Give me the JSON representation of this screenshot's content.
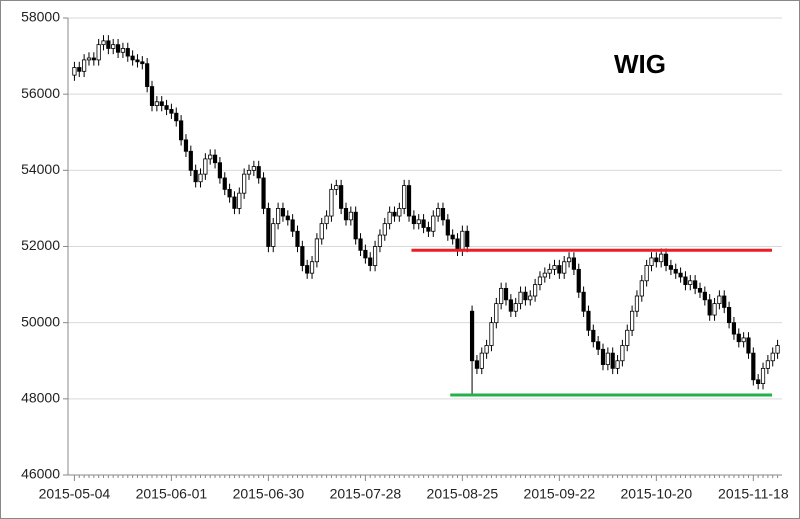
{
  "chart_data": {
    "type": "candlestick",
    "title": "WIG",
    "categories": [
      "2015-05-04",
      null,
      null,
      null,
      null,
      null,
      null,
      null,
      null,
      null,
      null,
      null,
      null,
      null,
      null,
      null,
      null,
      null,
      null,
      null,
      "2015-06-01",
      null,
      null,
      null,
      null,
      null,
      null,
      null,
      null,
      null,
      null,
      null,
      null,
      null,
      null,
      null,
      null,
      null,
      null,
      null,
      "2015-06-30",
      null,
      null,
      null,
      null,
      null,
      null,
      null,
      null,
      null,
      null,
      null,
      null,
      null,
      null,
      null,
      null,
      null,
      null,
      null,
      "2015-07-28",
      null,
      null,
      null,
      null,
      null,
      null,
      null,
      null,
      null,
      null,
      null,
      null,
      null,
      null,
      null,
      null,
      null,
      null,
      null,
      "2015-08-25",
      null,
      null,
      null,
      null,
      null,
      null,
      null,
      null,
      null,
      null,
      null,
      null,
      null,
      null,
      null,
      null,
      null,
      null,
      null,
      "2015-09-22",
      null,
      null,
      null,
      null,
      null,
      null,
      null,
      null,
      null,
      null,
      null,
      null,
      null,
      null,
      null,
      null,
      null,
      null,
      null,
      "2015-10-20",
      null,
      null,
      null,
      null,
      null,
      null,
      null,
      null,
      null,
      null,
      null,
      null,
      null,
      null,
      null,
      null,
      null,
      null,
      null,
      "2015-11-18",
      null,
      null,
      null,
      null,
      null
    ],
    "open": [
      56500,
      56700,
      56600,
      56900,
      56950,
      56900,
      57300,
      57400,
      57200,
      57300,
      57100,
      57200,
      57000,
      56900,
      56850,
      56800,
      56200,
      55700,
      55800,
      55700,
      55600,
      55500,
      55300,
      54800,
      54500,
      54000,
      53700,
      53900,
      54300,
      54400,
      54200,
      53800,
      53500,
      53300,
      53000,
      53400,
      53900,
      54000,
      54100,
      53800,
      53000,
      52000,
      52600,
      53000,
      52800,
      52700,
      52400,
      52000,
      51500,
      51300,
      51600,
      52200,
      52600,
      52800,
      53500,
      53600,
      53000,
      52700,
      52900,
      52200,
      51900,
      51700,
      51500,
      52000,
      52300,
      52600,
      52900,
      52800,
      53000,
      53600,
      52800,
      52600,
      52700,
      52500,
      52400,
      52800,
      53000,
      52700,
      52300,
      52200,
      51900,
      52400,
      50300,
      49000,
      48800,
      49200,
      49400,
      50000,
      50500,
      50900,
      50600,
      50300,
      50500,
      50800,
      50600,
      50700,
      51000,
      51200,
      51300,
      51400,
      51500,
      51300,
      51600,
      51700,
      51400,
      50800,
      50300,
      49800,
      49500,
      49300,
      48900,
      49200,
      48800,
      49000,
      49400,
      49800,
      50300,
      50700,
      51100,
      51500,
      51700,
      51600,
      51800,
      51500,
      51400,
      51300,
      51200,
      51000,
      51100,
      50900,
      50800,
      50600,
      50200,
      50500,
      50700,
      50400,
      50000,
      49700,
      49500,
      49600,
      49200,
      48500,
      48400,
      48800,
      49000,
      49200
    ],
    "high": [
      56850,
      56850,
      57050,
      57100,
      57100,
      57450,
      57550,
      57550,
      57450,
      57450,
      57350,
      57350,
      57150,
      57050,
      57000,
      56950,
      56350,
      55950,
      55950,
      55850,
      55750,
      55650,
      55450,
      54950,
      54650,
      54150,
      54050,
      54450,
      54550,
      54550,
      54350,
      53950,
      53650,
      53450,
      53550,
      54050,
      54150,
      54250,
      54250,
      53950,
      53150,
      52750,
      53150,
      53150,
      52950,
      52850,
      52550,
      52150,
      51650,
      51750,
      52350,
      52750,
      52950,
      53650,
      53750,
      53750,
      53150,
      53050,
      53050,
      52350,
      52050,
      51850,
      52150,
      52450,
      52750,
      53050,
      53050,
      53150,
      53750,
      53750,
      52950,
      52850,
      52850,
      52650,
      52950,
      53150,
      53150,
      52850,
      52450,
      52350,
      52550,
      52550,
      50450,
      49150,
      49350,
      49550,
      50150,
      50650,
      51050,
      51050,
      50750,
      50650,
      50950,
      50950,
      50850,
      51150,
      51350,
      51450,
      51550,
      51650,
      51650,
      51750,
      51850,
      51850,
      51550,
      50950,
      50450,
      49950,
      49650,
      49450,
      49350,
      49350,
      49150,
      49550,
      49950,
      50450,
      50850,
      51250,
      51650,
      51850,
      51850,
      51950,
      51950,
      51650,
      51550,
      51450,
      51350,
      51250,
      51250,
      51050,
      50950,
      50750,
      50650,
      50850,
      50850,
      50550,
      50150,
      49850,
      49750,
      49750,
      49350,
      48650,
      48950,
      49150,
      49350,
      49550
    ],
    "low": [
      56350,
      56450,
      56450,
      56750,
      56750,
      56750,
      57150,
      57050,
      57050,
      56950,
      56950,
      56850,
      56750,
      56700,
      56650,
      56050,
      55550,
      55550,
      55550,
      55450,
      55350,
      55150,
      54650,
      54350,
      53850,
      53550,
      53550,
      53750,
      54150,
      54050,
      53650,
      53350,
      53150,
      52850,
      52850,
      53250,
      53750,
      53850,
      53650,
      52850,
      51850,
      51850,
      52450,
      52650,
      52550,
      52250,
      51850,
      51350,
      51150,
      51150,
      51450,
      52050,
      52450,
      52650,
      53350,
      52850,
      52550,
      52550,
      52050,
      51750,
      51550,
      51350,
      51350,
      51850,
      52150,
      52450,
      52650,
      52650,
      52850,
      52650,
      52450,
      52450,
      52350,
      52250,
      52250,
      52650,
      52550,
      52150,
      52050,
      51750,
      51750,
      51850,
      48100,
      48650,
      48650,
      49050,
      49250,
      49850,
      50350,
      50450,
      50150,
      50150,
      50350,
      50450,
      50450,
      50550,
      50850,
      51050,
      51150,
      51250,
      51150,
      51150,
      51450,
      51250,
      50650,
      50150,
      49650,
      49350,
      49150,
      48750,
      48750,
      48650,
      48650,
      48850,
      49250,
      49650,
      50150,
      50550,
      50950,
      51350,
      51450,
      51450,
      51350,
      51250,
      51150,
      51050,
      50850,
      50850,
      50750,
      50650,
      50450,
      50050,
      50050,
      50350,
      50250,
      49850,
      49550,
      49350,
      49350,
      49050,
      48350,
      48250,
      48250,
      48650,
      48850,
      49050
    ],
    "close": [
      56700,
      56600,
      56900,
      56950,
      56900,
      57300,
      57400,
      57200,
      57300,
      57100,
      57200,
      57000,
      56900,
      56850,
      56800,
      56200,
      55700,
      55800,
      55700,
      55600,
      55500,
      55300,
      54800,
      54500,
      54000,
      53700,
      53900,
      54300,
      54400,
      54200,
      53800,
      53500,
      53300,
      53000,
      53400,
      53900,
      54000,
      54100,
      53800,
      53000,
      52000,
      52600,
      53000,
      52800,
      52700,
      52400,
      52000,
      51500,
      51300,
      51600,
      52200,
      52600,
      52800,
      53500,
      53600,
      53000,
      52700,
      52900,
      52200,
      51900,
      51700,
      51500,
      52000,
      52300,
      52600,
      52900,
      52800,
      53000,
      53600,
      52800,
      52600,
      52700,
      52500,
      52400,
      52800,
      53000,
      52700,
      52300,
      52200,
      51900,
      52400,
      52000,
      49000,
      48800,
      49200,
      49400,
      50000,
      50500,
      50900,
      50600,
      50300,
      50500,
      50800,
      50600,
      50700,
      51000,
      51200,
      51300,
      51400,
      51500,
      51300,
      51600,
      51700,
      51400,
      50800,
      50300,
      49800,
      49500,
      49300,
      48900,
      49200,
      48800,
      49000,
      49400,
      49800,
      50300,
      50700,
      51100,
      51500,
      51700,
      51600,
      51800,
      51500,
      51400,
      51300,
      51200,
      51000,
      51100,
      50900,
      50800,
      50600,
      50200,
      50500,
      50700,
      50400,
      50000,
      49700,
      49500,
      49600,
      49200,
      48500,
      48400,
      48800,
      49000,
      49200,
      49400
    ],
    "up_color": "#ffffff",
    "down_color": "#000000",
    "ylim": [
      46000,
      58000
    ],
    "yticks": [
      46000,
      48000,
      50000,
      52000,
      54000,
      56000,
      58000
    ],
    "grid": true,
    "hlines": [
      {
        "value": 51900,
        "color": "#ee1c25",
        "start": 70
      },
      {
        "value": 48100,
        "color": "#22b14c",
        "start": 78
      }
    ]
  }
}
